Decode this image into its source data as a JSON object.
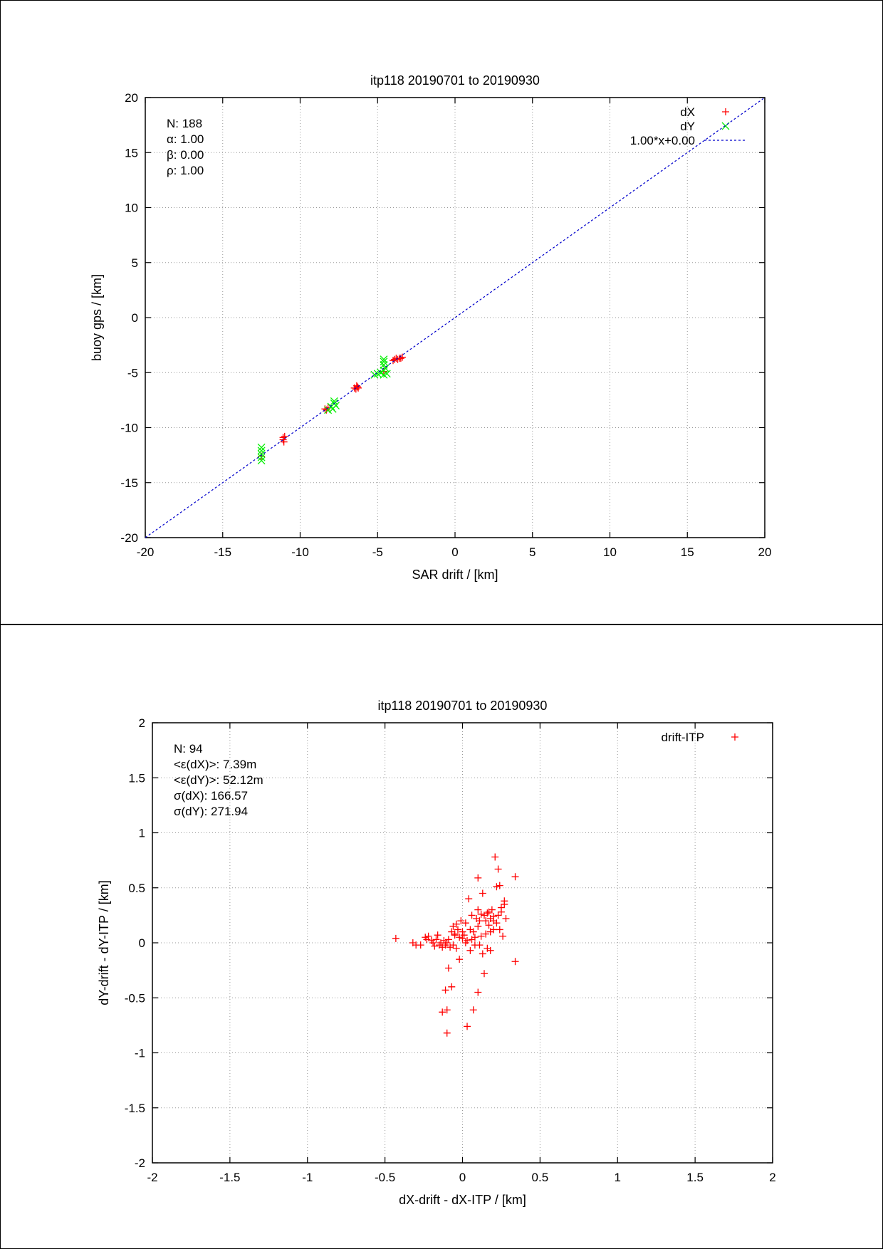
{
  "chart_data": [
    {
      "type": "scatter",
      "title": "itp118 20190701 to 20190930",
      "xlabel": "SAR drift / [km]",
      "ylabel": "buoy gps / [km]",
      "xlim": [
        -20,
        20
      ],
      "ylim": [
        -20,
        20
      ],
      "xticks": [
        "-20",
        "-15",
        "-10",
        "-5",
        "0",
        "5",
        "10",
        "15",
        "20"
      ],
      "yticks": [
        "-20",
        "-15",
        "-10",
        "-5",
        "0",
        "5",
        "10",
        "15",
        "20"
      ],
      "grid": true,
      "legend_position": "top-right",
      "stats": [
        "N: 188",
        "α: 1.00",
        "β: 0.00",
        "ρ: 1.00"
      ],
      "series": [
        {
          "name": "dX",
          "marker": "+",
          "color": "#ff0000",
          "points": [
            [
              -12.5,
              -12.6
            ],
            [
              -11.1,
              -10.9
            ],
            [
              -11.1,
              -11.1
            ],
            [
              -11.05,
              -11.3
            ],
            [
              -11.0,
              -10.8
            ],
            [
              -8.4,
              -8.3
            ],
            [
              -8.3,
              -8.4
            ],
            [
              -8.2,
              -8.2
            ],
            [
              -6.5,
              -6.4
            ],
            [
              -6.4,
              -6.5
            ],
            [
              -6.3,
              -6.3
            ],
            [
              -6.35,
              -6.2
            ],
            [
              -6.25,
              -6.4
            ],
            [
              -4.6,
              -4.9
            ],
            [
              -3.9,
              -3.8
            ],
            [
              -3.8,
              -3.7
            ],
            [
              -3.7,
              -3.8
            ],
            [
              -3.6,
              -3.7
            ],
            [
              -3.5,
              -3.7
            ],
            [
              -4.0,
              -3.9
            ],
            [
              -3.4,
              -3.6
            ]
          ]
        },
        {
          "name": "dY",
          "marker": "x",
          "color": "#00ee00",
          "points": [
            [
              -12.5,
              -11.8
            ],
            [
              -12.5,
              -12.1
            ],
            [
              -12.5,
              -12.4
            ],
            [
              -12.5,
              -12.7
            ],
            [
              -12.5,
              -13.0
            ],
            [
              -8.2,
              -8.4
            ],
            [
              -8.0,
              -8.1
            ],
            [
              -7.9,
              -8.3
            ],
            [
              -7.8,
              -7.8
            ],
            [
              -7.7,
              -8.0
            ],
            [
              -7.8,
              -7.6
            ],
            [
              -5.2,
              -5.2
            ],
            [
              -5.0,
              -5.1
            ],
            [
              -4.8,
              -5.0
            ],
            [
              -4.6,
              -4.8
            ],
            [
              -4.6,
              -5.2
            ],
            [
              -4.6,
              -4.3
            ],
            [
              -4.6,
              -4.0
            ],
            [
              -4.6,
              -3.8
            ],
            [
              -4.5,
              -4.6
            ],
            [
              -4.4,
              -5.1
            ]
          ]
        },
        {
          "name": "1.00*x+0.00",
          "type": "line",
          "style": "dashed",
          "color": "#0000cc",
          "slope": 1.0,
          "intercept": 0.0
        }
      ]
    },
    {
      "type": "scatter",
      "title": "itp118 20190701 to 20190930",
      "xlabel": "dX-drift - dX-ITP / [km]",
      "ylabel": "dY-drift - dY-ITP / [km]",
      "xlim": [
        -2,
        2
      ],
      "ylim": [
        -2,
        2
      ],
      "xticks": [
        "-2",
        "-1.5",
        "-1",
        "-0.5",
        "0",
        "0.5",
        "1",
        "1.5",
        "2"
      ],
      "yticks": [
        "-2",
        "-1.5",
        "-1",
        "-0.5",
        "0",
        "0.5",
        "1",
        "1.5",
        "2"
      ],
      "grid": true,
      "legend_position": "top-right",
      "stats": [
        "N: 94",
        "<ε(dX)>:  7.39m",
        "<ε(dY)>: 52.12m",
        "σ(dX):  166.57",
        "σ(dY):  271.94"
      ],
      "series": [
        {
          "name": "drift-ITP",
          "marker": "+",
          "color": "#ff0000",
          "points": [
            [
              -0.43,
              0.04
            ],
            [
              -0.32,
              0.0
            ],
            [
              -0.3,
              -0.02
            ],
            [
              -0.27,
              -0.02
            ],
            [
              -0.24,
              0.05
            ],
            [
              -0.23,
              0.03
            ],
            [
              -0.22,
              0.06
            ],
            [
              -0.2,
              0.02
            ],
            [
              -0.19,
              0.0
            ],
            [
              -0.18,
              -0.03
            ],
            [
              -0.17,
              0.03
            ],
            [
              -0.16,
              0.07
            ],
            [
              -0.15,
              -0.02
            ],
            [
              -0.14,
              0.0
            ],
            [
              -0.13,
              -0.04
            ],
            [
              -0.12,
              0.02
            ],
            [
              -0.11,
              -0.02
            ],
            [
              -0.1,
              0.0
            ],
            [
              -0.09,
              0.03
            ],
            [
              -0.08,
              -0.04
            ],
            [
              -0.07,
              0.1
            ],
            [
              -0.06,
              0.15
            ],
            [
              -0.05,
              0.08
            ],
            [
              -0.04,
              0.17
            ],
            [
              -0.03,
              0.12
            ],
            [
              -0.02,
              0.05
            ],
            [
              -0.01,
              0.2
            ],
            [
              0.0,
              0.1
            ],
            [
              0.01,
              0.07
            ],
            [
              0.02,
              0.0
            ],
            [
              0.03,
              0.02
            ],
            [
              0.04,
              0.4
            ],
            [
              0.05,
              -0.07
            ],
            [
              0.06,
              0.25
            ],
            [
              0.07,
              0.1
            ],
            [
              0.08,
              0.05
            ],
            [
              0.09,
              0.22
            ],
            [
              0.1,
              0.3
            ],
            [
              0.11,
              0.2
            ],
            [
              0.12,
              0.26
            ],
            [
              0.13,
              0.45
            ],
            [
              0.14,
              0.25
            ],
            [
              0.15,
              0.2
            ],
            [
              0.16,
              0.27
            ],
            [
              0.17,
              0.28
            ],
            [
              0.18,
              0.22
            ],
            [
              0.19,
              0.3
            ],
            [
              0.2,
              0.2
            ],
            [
              0.21,
              0.78
            ],
            [
              0.22,
              0.51
            ],
            [
              0.23,
              0.67
            ],
            [
              0.24,
              0.52
            ],
            [
              0.25,
              0.32
            ],
            [
              0.26,
              0.06
            ],
            [
              0.27,
              0.35
            ],
            [
              0.28,
              0.22
            ],
            [
              0.34,
              0.6
            ],
            [
              0.34,
              -0.17
            ],
            [
              -0.09,
              -0.23
            ],
            [
              -0.07,
              -0.4
            ],
            [
              -0.11,
              -0.43
            ],
            [
              -0.13,
              -0.63
            ],
            [
              -0.1,
              -0.61
            ],
            [
              -0.1,
              -0.82
            ],
            [
              0.03,
              -0.76
            ],
            [
              0.07,
              -0.61
            ],
            [
              0.1,
              -0.45
            ],
            [
              0.1,
              0.59
            ],
            [
              0.13,
              -0.1
            ],
            [
              0.14,
              -0.28
            ],
            [
              0.16,
              -0.05
            ],
            [
              0.18,
              -0.07
            ],
            [
              0.12,
              0.06
            ],
            [
              0.05,
              0.12
            ],
            [
              -0.02,
              -0.15
            ],
            [
              -0.04,
              -0.05
            ],
            [
              0.0,
              0.04
            ],
            [
              -0.06,
              -0.02
            ],
            [
              0.08,
              -0.02
            ],
            [
              0.15,
              0.08
            ],
            [
              0.2,
              0.12
            ],
            [
              0.23,
              0.25
            ],
            [
              0.25,
              0.28
            ],
            [
              0.22,
              0.18
            ],
            [
              0.18,
              0.1
            ],
            [
              0.1,
              0.15
            ],
            [
              0.02,
              0.18
            ],
            [
              -0.05,
              0.07
            ],
            [
              0.06,
              0.03
            ],
            [
              0.11,
              -0.02
            ],
            [
              0.17,
              0.16
            ],
            [
              0.2,
              0.24
            ],
            [
              0.24,
              0.12
            ],
            [
              0.27,
              0.38
            ]
          ]
        }
      ]
    }
  ]
}
